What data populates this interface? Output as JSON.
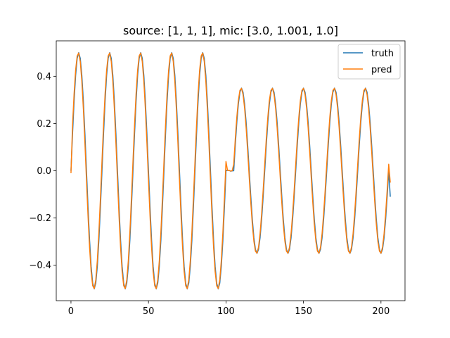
{
  "chart_data": {
    "type": "line",
    "title": "source: [1, 1, 1], mic: [3.0, 1.001, 1.0]",
    "xlabel": "",
    "ylabel": "",
    "xlim": [
      -9.5,
      215.5
    ],
    "ylim": [
      -0.55,
      0.55
    ],
    "xticks": [
      0,
      50,
      100,
      150,
      200
    ],
    "xtick_labels": [
      "0",
      "50",
      "100",
      "150",
      "200"
    ],
    "yticks": [
      -0.4,
      -0.2,
      0.0,
      0.2,
      0.4
    ],
    "ytick_labels": [
      "−0.4",
      "−0.2",
      "0.0",
      "0.2",
      "0.4"
    ],
    "grid": false,
    "legend_position": "top-right",
    "signal": {
      "n_points": 207,
      "segment1": {
        "x_start": 0,
        "x_end": 100,
        "amplitude": 0.5,
        "period": 20
      },
      "segment2": {
        "x_start": 101,
        "x_end": 206,
        "amplitude": 0.35,
        "period": 20,
        "phase_start": 105
      }
    },
    "series": [
      {
        "name": "truth",
        "color": "#1f77b4",
        "y_last": -0.11
      },
      {
        "name": "pred",
        "color": "#ff7f0e",
        "y_last": -0.05
      }
    ]
  }
}
